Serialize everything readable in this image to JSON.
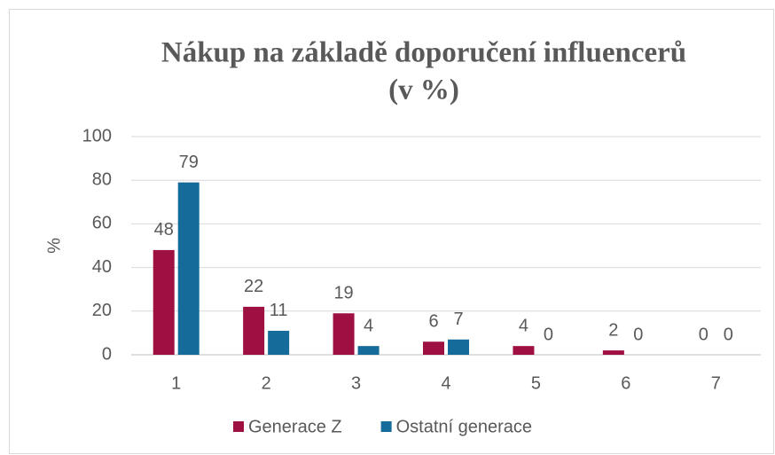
{
  "chart_data": {
    "type": "bar",
    "title": [
      "Nákup na základě doporučení influencerů",
      "(v %)"
    ],
    "y_label": "%",
    "categories": [
      "1",
      "2",
      "3",
      "4",
      "5",
      "6",
      "7"
    ],
    "series": [
      {
        "name": "Generace Z",
        "color": "#9e1042",
        "values": [
          48,
          22,
          19,
          6,
          4,
          2,
          0
        ]
      },
      {
        "name": "Ostatní generace",
        "color": "#156b9a",
        "values": [
          79,
          11,
          4,
          7,
          0,
          0,
          0
        ]
      }
    ],
    "ylim": [
      0,
      100
    ],
    "yticks": [
      0,
      20,
      40,
      60,
      80,
      100
    ],
    "grid": true,
    "legend": "bottom"
  }
}
